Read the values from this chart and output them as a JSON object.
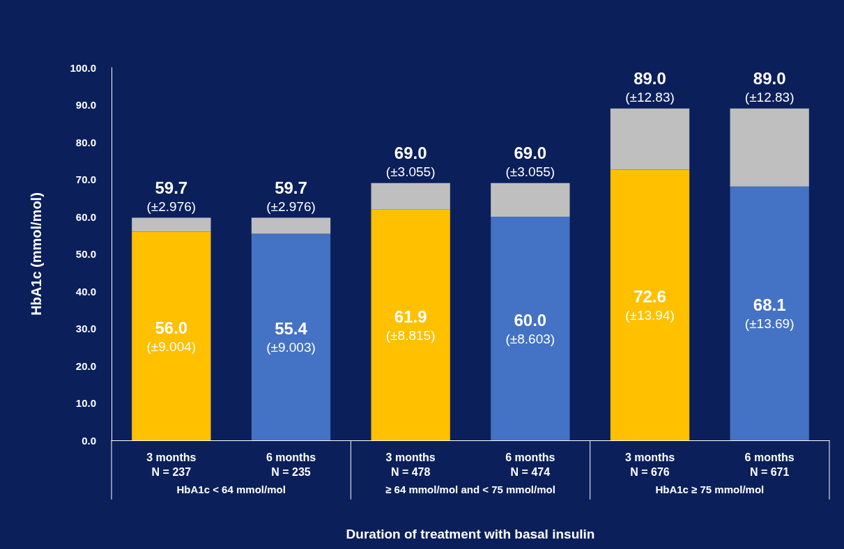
{
  "chart_data": {
    "type": "bar",
    "stacked": true,
    "ylabel": "HbA1c (mmol/mol)",
    "xlabel": "Duration of treatment with basal insulin",
    "categories": [
      "3 months\nN = 237",
      "6 months\nN = 235",
      "3 months\nN = 478",
      "6 months\nN = 474",
      "3 months\nN = 676",
      "6 months\nN = 671"
    ],
    "series": [
      {
        "colors": [
          "#ffc000",
          "#4472c4",
          "#ffc000",
          "#4472c4",
          "#ffc000",
          "#4472c4"
        ],
        "values": [
          56.0,
          55.4,
          61.9,
          60.0,
          72.6,
          68.1
        ],
        "value_labels": [
          "56.0\n(±9.004)",
          "55.4\n(±9.003)",
          "61.9\n(±8.815)",
          "60.0\n(±8.603)",
          "72.6\n(±13.94)",
          "68.1\n(±13.69)"
        ]
      },
      {
        "color": "#bfbfbf",
        "values": [
          3.7,
          4.3,
          7.1,
          9.0,
          16.4,
          20.9
        ]
      }
    ],
    "totals": [
      "59.7\n(±2.976)",
      "59.7\n(±2.976)",
      "69.0\n(±3.055)",
      "69.0\n(±3.055)",
      "89.0\n(±12.83)",
      "89.0\n(±12.83)"
    ],
    "annotations": [
      "HbA1c < 64 mmol/mol",
      "≥ 64 mmol/mol and < 75 mmol/mol",
      "HbA1c ≥ 75 mmol/mol"
    ],
    "ylim": [
      0,
      100
    ],
    "yticks": [
      {
        "value": 0,
        "label": "0.0"
      },
      {
        "value": 10,
        "label": "10.0"
      },
      {
        "value": 20,
        "label": "20.0"
      },
      {
        "value": 30,
        "label": "30.0"
      },
      {
        "value": 40,
        "label": "40.0"
      },
      {
        "value": 50,
        "label": "50.0"
      },
      {
        "value": 60,
        "label": "60.0"
      },
      {
        "value": 70,
        "label": "70.0"
      },
      {
        "value": 80,
        "label": "80.0"
      },
      {
        "value": 90,
        "label": "90.0"
      },
      {
        "value": 100,
        "label": "100.0"
      }
    ],
    "grid": false
  }
}
